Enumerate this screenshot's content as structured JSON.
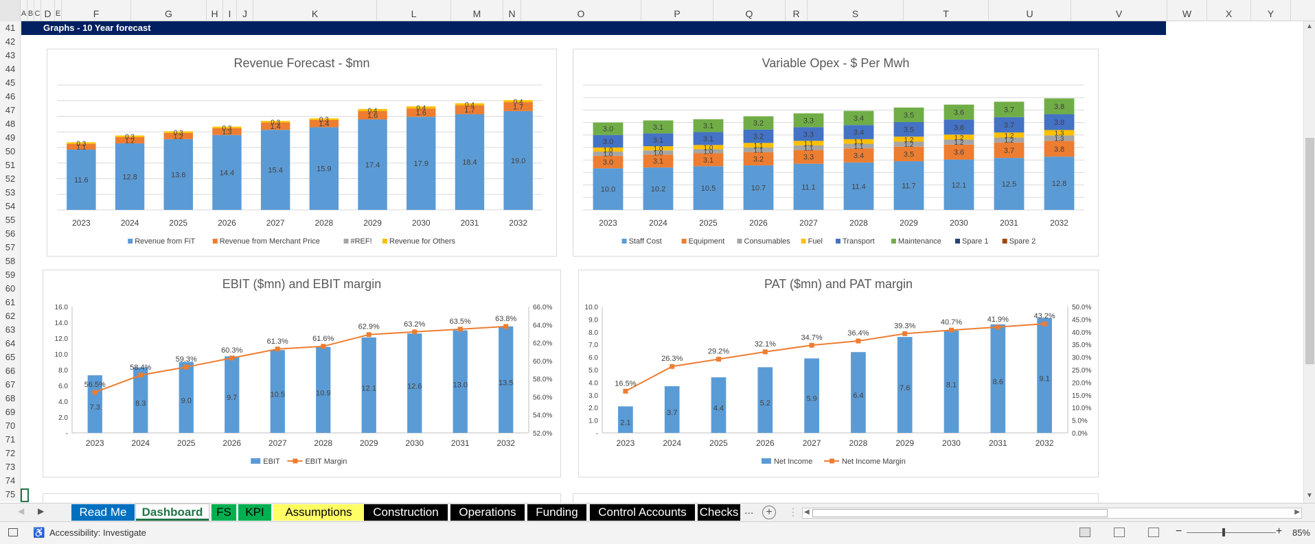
{
  "sheet": {
    "columns": [
      "A",
      "B",
      "C",
      "D",
      "E",
      "F",
      "G",
      "H",
      "I",
      "J",
      "K",
      "L",
      "M",
      "N",
      "O",
      "P",
      "Q",
      "R",
      "S",
      "T",
      "U",
      "V",
      "W",
      "X",
      "Y"
    ],
    "rows": [
      "41",
      "42",
      "43",
      "44",
      "45",
      "46",
      "47",
      "48",
      "49",
      "50",
      "51",
      "52",
      "53",
      "54",
      "55",
      "56",
      "57",
      "58",
      "59",
      "60",
      "61",
      "62",
      "63",
      "64",
      "65",
      "66",
      "67",
      "68",
      "69",
      "70",
      "71",
      "72",
      "73",
      "74",
      "75"
    ],
    "banner": "Graphs - 10 Year forecast"
  },
  "chart_data": [
    {
      "type": "bar",
      "stacked": true,
      "title": "Revenue Forecast - $mn",
      "categories": [
        "2023",
        "2024",
        "2025",
        "2026",
        "2027",
        "2028",
        "2029",
        "2030",
        "2031",
        "2032"
      ],
      "series": [
        {
          "name": "Revenue from FiT",
          "color": "#5b9bd5",
          "values": [
            11.6,
            12.8,
            13.6,
            14.4,
            15.4,
            15.9,
            17.4,
            17.9,
            18.4,
            19.0
          ]
        },
        {
          "name": "Revenue from Merchant Price",
          "color": "#ed7d31",
          "values": [
            1.1,
            1.2,
            1.2,
            1.3,
            1.4,
            1.4,
            1.6,
            1.6,
            1.7,
            1.7
          ]
        },
        {
          "name": "#REF!",
          "color": "#a5a5a5",
          "values": [
            0,
            0,
            0,
            0,
            0,
            0,
            0,
            0,
            0,
            0
          ]
        },
        {
          "name": "Revenue for Others",
          "color": "#ffc000",
          "values": [
            0.3,
            0.3,
            0.3,
            0.3,
            0.3,
            0.3,
            0.4,
            0.4,
            0.4,
            0.4
          ]
        }
      ],
      "ylim": [
        0,
        24
      ],
      "gridlines": true,
      "legend": "bottom"
    },
    {
      "type": "bar",
      "stacked": true,
      "title": "Variable Opex - $ Per Mwh",
      "categories": [
        "2023",
        "2024",
        "2025",
        "2026",
        "2027",
        "2028",
        "2029",
        "2030",
        "2031",
        "2032"
      ],
      "series": [
        {
          "name": "Staff Cost",
          "color": "#5b9bd5",
          "values": [
            10.0,
            10.2,
            10.5,
            10.7,
            11.1,
            11.4,
            11.7,
            12.1,
            12.5,
            12.8
          ]
        },
        {
          "name": "Equipment",
          "color": "#ed7d31",
          "values": [
            3.0,
            3.1,
            3.1,
            3.2,
            3.3,
            3.4,
            3.5,
            3.6,
            3.7,
            3.8
          ]
        },
        {
          "name": "Consumables",
          "color": "#a5a5a5",
          "values": [
            1.0,
            1.0,
            1.0,
            1.1,
            1.1,
            1.1,
            1.2,
            1.2,
            1.2,
            1.3
          ]
        },
        {
          "name": "Fuel",
          "color": "#ffc000",
          "values": [
            1.0,
            1.0,
            1.0,
            1.1,
            1.1,
            1.1,
            1.2,
            1.2,
            1.2,
            1.3
          ]
        },
        {
          "name": "Transport",
          "color": "#4472c4",
          "values": [
            3.0,
            3.1,
            3.1,
            3.2,
            3.3,
            3.4,
            3.5,
            3.6,
            3.7,
            3.8
          ]
        },
        {
          "name": "Maintenance",
          "color": "#70ad47",
          "values": [
            3.0,
            3.1,
            3.1,
            3.2,
            3.3,
            3.4,
            3.5,
            3.6,
            3.7,
            3.8
          ]
        },
        {
          "name": "Spare 1",
          "color": "#264478",
          "values": [
            0,
            0,
            0,
            0,
            0,
            0,
            0,
            0,
            0,
            0
          ]
        },
        {
          "name": "Spare 2",
          "color": "#9e480e",
          "values": [
            0,
            0,
            0,
            0,
            0,
            0,
            0,
            0,
            0,
            0
          ]
        }
      ],
      "ylim": [
        0,
        30
      ],
      "gridlines": true,
      "legend": "bottom"
    },
    {
      "type": "bar",
      "combo": "bar-line",
      "title": "EBIT ($mn) and EBIT margin",
      "categories": [
        "2023",
        "2024",
        "2025",
        "2026",
        "2027",
        "2028",
        "2029",
        "2030",
        "2031",
        "2032"
      ],
      "series": [
        {
          "name": "EBIT",
          "color": "#5b9bd5",
          "values": [
            7.3,
            8.3,
            9.0,
            9.7,
            10.5,
            10.9,
            12.1,
            12.6,
            13.0,
            13.5
          ],
          "axis": "left"
        },
        {
          "name": "EBIT Margin",
          "color": "#ed7d31",
          "type": "line",
          "values": [
            56.5,
            58.4,
            59.3,
            60.3,
            61.3,
            61.6,
            62.9,
            63.2,
            63.5,
            63.8
          ],
          "labels": [
            "56.5%",
            "58.4%",
            "59.3%",
            "60.3%",
            "61.3%",
            "61.6%",
            "62.9%",
            "63.2%",
            "63.5%",
            "63.8%"
          ],
          "axis": "right"
        }
      ],
      "ylim": [
        0,
        16
      ],
      "yticks": [
        "-",
        "2.0",
        "4.0",
        "6.0",
        "8.0",
        "10.0",
        "12.0",
        "14.0",
        "16.0"
      ],
      "y2lim": [
        52,
        66
      ],
      "y2ticks": [
        "52.0%",
        "54.0%",
        "56.0%",
        "58.0%",
        "60.0%",
        "62.0%",
        "64.0%",
        "66.0%"
      ],
      "gridlines": false,
      "legend": "bottom"
    },
    {
      "type": "bar",
      "combo": "bar-line",
      "title": "PAT ($mn) and PAT margin",
      "categories": [
        "2023",
        "2024",
        "2025",
        "2026",
        "2027",
        "2028",
        "2029",
        "2030",
        "2031",
        "2032"
      ],
      "series": [
        {
          "name": "Net Income",
          "color": "#5b9bd5",
          "values": [
            2.1,
            3.7,
            4.4,
            5.2,
            5.9,
            6.4,
            7.6,
            8.1,
            8.6,
            9.1
          ],
          "axis": "left"
        },
        {
          "name": "Net Income Margin",
          "color": "#ed7d31",
          "type": "line",
          "values": [
            16.5,
            26.3,
            29.2,
            32.1,
            34.7,
            36.4,
            39.3,
            40.7,
            41.9,
            43.2
          ],
          "labels": [
            "16.5%",
            "26.3%",
            "29.2%",
            "32.1%",
            "34.7%",
            "36.4%",
            "39.3%",
            "40.7%",
            "41.9%",
            "43.2%"
          ],
          "axis": "right"
        }
      ],
      "ylim": [
        0,
        10
      ],
      "yticks": [
        "-",
        "1.0",
        "2.0",
        "3.0",
        "4.0",
        "5.0",
        "6.0",
        "7.0",
        "8.0",
        "9.0",
        "10.0"
      ],
      "y2lim": [
        0,
        50
      ],
      "y2ticks": [
        "0.0%",
        "5.0%",
        "10.0%",
        "15.0%",
        "20.0%",
        "25.0%",
        "30.0%",
        "35.0%",
        "40.0%",
        "45.0%",
        "50.0%"
      ],
      "gridlines": false,
      "legend": "bottom"
    }
  ],
  "tabs": [
    {
      "label": "Read Me",
      "bg": "#0070c0",
      "fg": "#ffffff"
    },
    {
      "label": "Dashboard",
      "bg": "#ffffff",
      "fg": "#217346",
      "active": true
    },
    {
      "label": "FS",
      "bg": "#00b050",
      "fg": "#000000"
    },
    {
      "label": "KPI",
      "bg": "#00b050",
      "fg": "#000000"
    },
    {
      "label": "Assumptions",
      "bg": "#ffff66",
      "fg": "#000000"
    },
    {
      "label": "Construction",
      "bg": "#000000",
      "fg": "#ffffff"
    },
    {
      "label": "Operations",
      "bg": "#000000",
      "fg": "#ffffff"
    },
    {
      "label": "Funding",
      "bg": "#000000",
      "fg": "#ffffff"
    },
    {
      "label": "Control Accounts",
      "bg": "#000000",
      "fg": "#ffffff"
    },
    {
      "label": "Checks",
      "bg": "#000000",
      "fg": "#ffffff"
    }
  ],
  "tabbar": {
    "more": "...",
    "add": "+"
  },
  "status": {
    "accessibility": "Accessibility: Investigate",
    "zoom": "85%",
    "zoom_minus": "−",
    "zoom_plus": "+"
  }
}
